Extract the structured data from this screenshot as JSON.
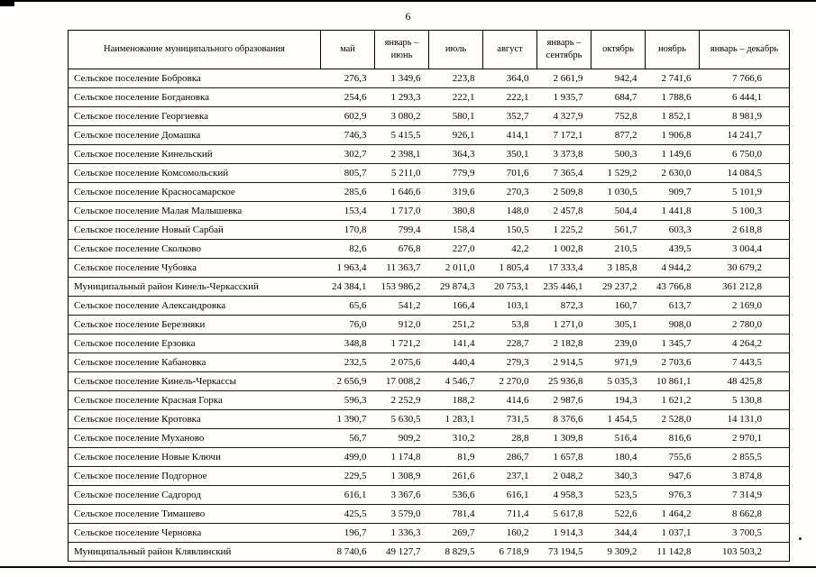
{
  "page": {
    "number": "6"
  },
  "table": {
    "header": {
      "name_col": "Наименование муниципального образования",
      "columns": [
        "май",
        "январь – июнь",
        "июль",
        "август",
        "январь – сентябрь",
        "октябрь",
        "ноябрь",
        "январь – декабрь"
      ]
    },
    "rows": [
      {
        "name": "Сельское поселение Бобровка",
        "values": [
          "276,3",
          "1 349,6",
          "223,8",
          "364,0",
          "2 661,9",
          "942,4",
          "2 741,6",
          "7 766,6"
        ]
      },
      {
        "name": "Сельское поселение Богдановка",
        "values": [
          "254,6",
          "1 293,3",
          "222,1",
          "222,1",
          "1 935,7",
          "684,7",
          "1 788,6",
          "6 444,1"
        ]
      },
      {
        "name": "Сельское поселение Георгиевка",
        "values": [
          "602,9",
          "3 080,2",
          "580,1",
          "352,7",
          "4 327,9",
          "752,8",
          "1 852,1",
          "8 981,9"
        ]
      },
      {
        "name": "Сельское поселение Домашка",
        "values": [
          "746,3",
          "5 415,5",
          "926,1",
          "414,1",
          "7 172,1",
          "877,2",
          "1 906,8",
          "14 241,7"
        ]
      },
      {
        "name": "Сельское поселение Кинельский",
        "values": [
          "302,7",
          "2 398,1",
          "364,3",
          "350,1",
          "3 373,8",
          "500,3",
          "1 149,6",
          "6 750,0"
        ]
      },
      {
        "name": "Сельское поселение Комсомольский",
        "values": [
          "805,7",
          "5 211,0",
          "779,9",
          "701,6",
          "7 365,4",
          "1 529,2",
          "2 630,0",
          "14 084,5"
        ]
      },
      {
        "name": "Сельское поселение Красносамарское",
        "values": [
          "285,6",
          "1 646,6",
          "319,6",
          "270,3",
          "2 509,8",
          "1 030,5",
          "909,7",
          "5 101,9"
        ]
      },
      {
        "name": "Сельское поселение Малая Малышевка",
        "values": [
          "153,4",
          "1 717,0",
          "380,8",
          "148,0",
          "2 457,8",
          "504,4",
          "1 441,8",
          "5 100,3"
        ]
      },
      {
        "name": "Сельское поселение Новый Сарбай",
        "values": [
          "170,8",
          "799,4",
          "158,4",
          "150,5",
          "1 225,2",
          "561,7",
          "603,3",
          "2 618,8"
        ]
      },
      {
        "name": "Сельское поселение Сколково",
        "values": [
          "82,6",
          "676,8",
          "227,0",
          "42,2",
          "1 002,8",
          "210,5",
          "439,5",
          "3 004,4"
        ]
      },
      {
        "name": "Сельское поселение Чубовка",
        "values": [
          "1 963,4",
          "11 363,7",
          "2 011,0",
          "1 805,4",
          "17 333,4",
          "3 185,8",
          "4 944,2",
          "30 679,2"
        ]
      },
      {
        "name": "Муниципальный район Кинель-Черкасский",
        "values": [
          "24 384,1",
          "153 986,2",
          "29 874,3",
          "20 753,1",
          "235 446,1",
          "29 237,2",
          "43 766,8",
          "361 212,8"
        ]
      },
      {
        "name": "Сельское поселение Александровка",
        "values": [
          "65,6",
          "541,2",
          "166,4",
          "103,1",
          "872,3",
          "160,7",
          "613,7",
          "2 169,0"
        ]
      },
      {
        "name": "Сельское поселение Березняки",
        "values": [
          "76,0",
          "912,0",
          "251,2",
          "53,8",
          "1 271,0",
          "305,1",
          "908,0",
          "2 780,0"
        ]
      },
      {
        "name": "Сельское поселение Ерзовка",
        "values": [
          "348,8",
          "1 721,2",
          "141,4",
          "228,7",
          "2 182,8",
          "239,0",
          "1 345,7",
          "4 264,2"
        ]
      },
      {
        "name": "Сельское поселение Кабановка",
        "values": [
          "232,5",
          "2 075,6",
          "440,4",
          "279,3",
          "2 914,5",
          "971,9",
          "2 703,6",
          "7 443,5"
        ]
      },
      {
        "name": "Сельское поселение Кинель-Черкассы",
        "values": [
          "2 656,9",
          "17 008,2",
          "4 546,7",
          "2 270,0",
          "25 936,8",
          "5 035,3",
          "10 861,1",
          "48 425,8"
        ]
      },
      {
        "name": "Сельское поселение Красная Горка",
        "values": [
          "596,3",
          "2 252,9",
          "188,2",
          "414,6",
          "2 987,6",
          "194,3",
          "1 621,2",
          "5 130,8"
        ]
      },
      {
        "name": "Сельское поселение Кротовка",
        "values": [
          "1 390,7",
          "5 630,5",
          "1 283,1",
          "731,5",
          "8 376,6",
          "1 454,5",
          "2 528,0",
          "14 131,0"
        ]
      },
      {
        "name": "Сельское поселение Муханово",
        "values": [
          "56,7",
          "909,2",
          "310,2",
          "28,8",
          "1 309,8",
          "516,4",
          "816,6",
          "2 970,1"
        ]
      },
      {
        "name": "Сельское поселение Новые Ключи",
        "values": [
          "499,0",
          "1 174,8",
          "81,9",
          "286,7",
          "1 657,8",
          "180,4",
          "755,6",
          "2 855,5"
        ]
      },
      {
        "name": "Сельское поселение Подгорное",
        "values": [
          "229,5",
          "1 308,9",
          "261,6",
          "237,1",
          "2 048,2",
          "340,3",
          "947,6",
          "3 874,8"
        ]
      },
      {
        "name": "Сельское поселение Садгород",
        "values": [
          "616,1",
          "3 367,6",
          "536,6",
          "616,1",
          "4 958,3",
          "523,5",
          "976,3",
          "7 314,9"
        ]
      },
      {
        "name": "Сельское поселение Тимашево",
        "values": [
          "425,5",
          "3 579,0",
          "781,4",
          "711,4",
          "5 617,8",
          "522,6",
          "1 464,2",
          "8 662,8"
        ]
      },
      {
        "name": "Сельское поселение Черновка",
        "values": [
          "196,7",
          "1 336,3",
          "269,7",
          "160,2",
          "1 914,3",
          "344,4",
          "1 037,1",
          "3 700,5"
        ]
      },
      {
        "name": "Муниципальный район Клявлинский",
        "values": [
          "8 740,6",
          "49 127,7",
          "8 829,5",
          "6 718,9",
          "73 194,5",
          "9 309,2",
          "11 142,8",
          "103 503,2"
        ]
      }
    ]
  }
}
